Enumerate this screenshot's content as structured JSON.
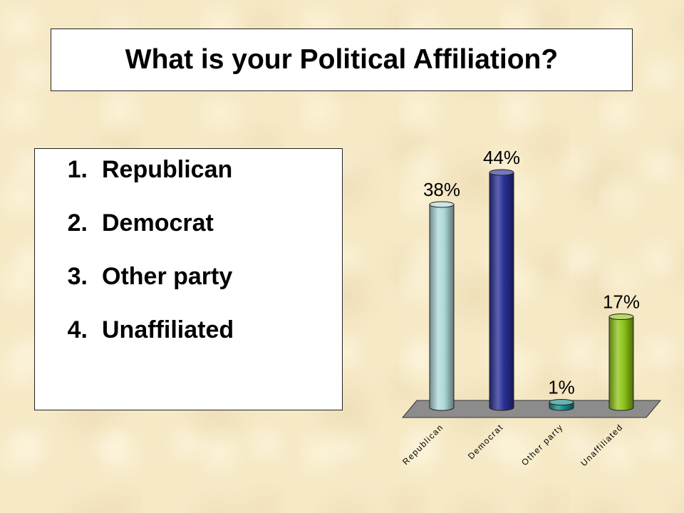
{
  "title": "What is your Political Affiliation?",
  "options": [
    {
      "num": "1.",
      "label": "Republican"
    },
    {
      "num": "2.",
      "label": "Democrat"
    },
    {
      "num": "3.",
      "label": "Other party"
    },
    {
      "num": "4.",
      "label": "Unaffiliated"
    }
  ],
  "chart_data": {
    "type": "bar",
    "categories": [
      "Republican",
      "Democrat",
      "Other party",
      "Unaffiliated"
    ],
    "values": [
      38,
      44,
      1,
      17
    ],
    "value_labels": [
      "38%",
      "44%",
      "1%",
      "17%"
    ],
    "ylim": [
      0,
      44
    ],
    "grid": false,
    "legend": "none",
    "colors": [
      "#aed8d8",
      "#2a2f96",
      "#138a8a",
      "#8ec418"
    ],
    "floor_color": "#8c8c8c"
  }
}
